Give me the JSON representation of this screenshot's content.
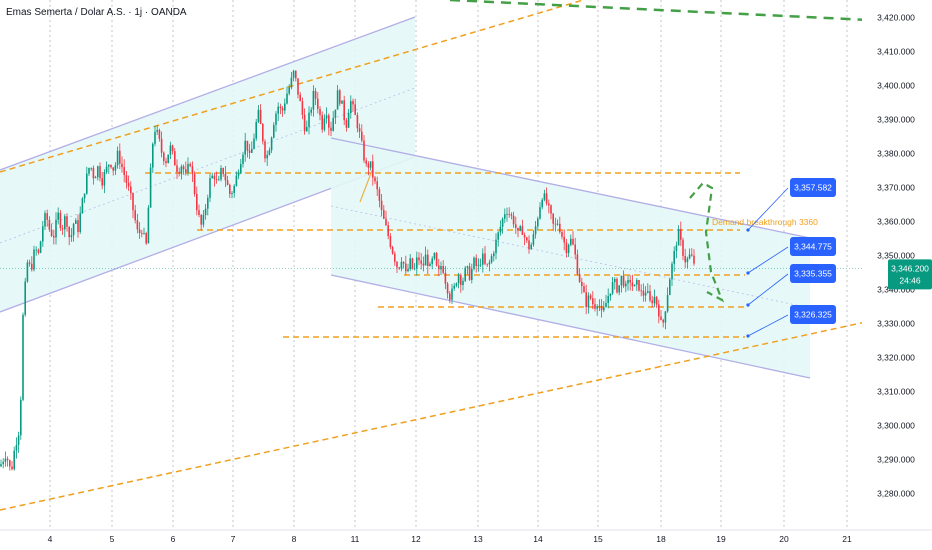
{
  "header": {
    "symbol": "Emas Semerta / Dolar A.S. · 1j · OANDA"
  },
  "colors": {
    "up": "#089981",
    "down": "#f23645",
    "orange": "#f0a01e",
    "green_dash": "#43a047",
    "channel_line": "#b2aee6",
    "channel_fill": "#e3f7f6",
    "label_blue": "#2962ff",
    "price_tag": "#089981",
    "grid": "#9598a1"
  },
  "chart_data": {
    "type": "candlestick",
    "ylim": [
      3275,
      3425
    ],
    "y_ticks": [
      3280,
      3290,
      3300,
      3310,
      3320,
      3330,
      3340,
      3350,
      3360,
      3370,
      3380,
      3390,
      3400,
      3410,
      3420
    ],
    "y_tick_labels": [
      "3,280.000",
      "3,290.000",
      "3,300.000",
      "3,310.000",
      "3,320.000",
      "3,330.000",
      "3,340.000",
      "3,350.000",
      "3,360.000",
      "3,370.000",
      "3,380.000",
      "3,390.000",
      "3,400.000",
      "3,410.000",
      "3,420.000"
    ],
    "x_ticks": [
      "4",
      "5",
      "6",
      "7",
      "8",
      "11",
      "12",
      "13",
      "14",
      "15",
      "18",
      "19",
      "20",
      "21"
    ],
    "current_price": "3,346.200",
    "countdown": "24:46",
    "annotation": "Demand breakthrough 3360",
    "level_labels": [
      "3,357.582",
      "3,344.775",
      "3,335.355",
      "3,326.325"
    ],
    "close_path": [
      [
        0,
        3288
      ],
      [
        6,
        3292
      ],
      [
        11,
        3286
      ],
      [
        15,
        3294
      ],
      [
        20,
        3300
      ],
      [
        23,
        3332
      ],
      [
        27,
        3348
      ],
      [
        31,
        3346
      ],
      [
        35,
        3352
      ],
      [
        39,
        3350
      ],
      [
        42,
        3358
      ],
      [
        46,
        3362
      ],
      [
        50,
        3357
      ],
      [
        54,
        3356
      ],
      [
        58,
        3362
      ],
      [
        62,
        3358
      ],
      [
        66,
        3362
      ],
      [
        70,
        3354
      ],
      [
        74,
        3360
      ],
      [
        78,
        3358
      ],
      [
        82,
        3365
      ],
      [
        86,
        3372
      ],
      [
        90,
        3377
      ],
      [
        94,
        3373
      ],
      [
        98,
        3376
      ],
      [
        102,
        3372
      ],
      [
        106,
        3375
      ],
      [
        110,
        3378
      ],
      [
        114,
        3375
      ],
      [
        118,
        3380
      ],
      [
        122,
        3376
      ],
      [
        126,
        3372
      ],
      [
        130,
        3368
      ],
      [
        134,
        3362
      ],
      [
        138,
        3356
      ],
      [
        142,
        3358
      ],
      [
        146,
        3352
      ],
      [
        150,
        3372
      ],
      [
        154,
        3388
      ],
      [
        158,
        3385
      ],
      [
        162,
        3380
      ],
      [
        166,
        3378
      ],
      [
        170,
        3382
      ],
      [
        174,
        3378
      ],
      [
        178,
        3375
      ],
      [
        182,
        3377
      ],
      [
        186,
        3373
      ],
      [
        190,
        3378
      ],
      [
        194,
        3370
      ],
      [
        198,
        3362
      ],
      [
        202,
        3358
      ],
      [
        206,
        3365
      ],
      [
        210,
        3372
      ],
      [
        214,
        3374
      ],
      [
        218,
        3370
      ],
      [
        222,
        3376
      ],
      [
        226,
        3372
      ],
      [
        230,
        3368
      ],
      [
        234,
        3370
      ],
      [
        238,
        3375
      ],
      [
        242,
        3380
      ],
      [
        246,
        3384
      ],
      [
        250,
        3378
      ],
      [
        254,
        3385
      ],
      [
        258,
        3392
      ],
      [
        262,
        3386
      ],
      [
        266,
        3378
      ],
      [
        270,
        3383
      ],
      [
        274,
        3390
      ],
      [
        278,
        3394
      ],
      [
        282,
        3392
      ],
      [
        286,
        3397
      ],
      [
        290,
        3400
      ],
      [
        294,
        3404
      ],
      [
        298,
        3398
      ],
      [
        302,
        3392
      ],
      [
        306,
        3386
      ],
      [
        310,
        3392
      ],
      [
        314,
        3398
      ],
      [
        318,
        3394
      ],
      [
        322,
        3388
      ],
      [
        326,
        3394
      ],
      [
        330,
        3386
      ],
      [
        334,
        3392
      ],
      [
        338,
        3398
      ],
      [
        342,
        3394
      ],
      [
        346,
        3388
      ],
      [
        350,
        3396
      ],
      [
        354,
        3392
      ],
      [
        358,
        3388
      ],
      [
        362,
        3382
      ],
      [
        366,
        3376
      ],
      [
        370,
        3377
      ],
      [
        374,
        3372
      ],
      [
        378,
        3368
      ],
      [
        382,
        3362
      ],
      [
        386,
        3358
      ],
      [
        390,
        3354
      ],
      [
        394,
        3350
      ],
      [
        398,
        3346
      ],
      [
        402,
        3350
      ],
      [
        406,
        3344
      ],
      [
        410,
        3348
      ],
      [
        414,
        3345
      ],
      [
        418,
        3350
      ],
      [
        422,
        3346
      ],
      [
        426,
        3350
      ],
      [
        430,
        3346
      ],
      [
        434,
        3350
      ],
      [
        438,
        3344
      ],
      [
        442,
        3348
      ],
      [
        446,
        3342
      ],
      [
        450,
        3338
      ],
      [
        454,
        3340
      ],
      [
        458,
        3345
      ],
      [
        462,
        3342
      ],
      [
        466,
        3346
      ],
      [
        470,
        3344
      ],
      [
        474,
        3348
      ],
      [
        478,
        3346
      ],
      [
        482,
        3350
      ],
      [
        486,
        3346
      ],
      [
        490,
        3348
      ],
      [
        494,
        3352
      ],
      [
        498,
        3356
      ],
      [
        502,
        3360
      ],
      [
        506,
        3364
      ],
      [
        510,
        3362
      ],
      [
        514,
        3360
      ],
      [
        518,
        3356
      ],
      [
        522,
        3358
      ],
      [
        526,
        3354
      ],
      [
        530,
        3352
      ],
      [
        534,
        3356
      ],
      [
        538,
        3362
      ],
      [
        542,
        3368
      ],
      [
        546,
        3366
      ],
      [
        550,
        3362
      ],
      [
        554,
        3358
      ],
      [
        558,
        3360
      ],
      [
        562,
        3356
      ],
      [
        566,
        3352
      ],
      [
        570,
        3355
      ],
      [
        574,
        3352
      ],
      [
        578,
        3345
      ],
      [
        582,
        3340
      ],
      [
        586,
        3336
      ],
      [
        590,
        3338
      ],
      [
        594,
        3335
      ],
      [
        598,
        3337
      ],
      [
        602,
        3332
      ],
      [
        606,
        3336
      ],
      [
        610,
        3340
      ],
      [
        614,
        3342
      ],
      [
        618,
        3340
      ],
      [
        622,
        3344
      ],
      [
        626,
        3340
      ],
      [
        630,
        3343
      ],
      [
        634,
        3340
      ],
      [
        638,
        3342
      ],
      [
        642,
        3338
      ],
      [
        646,
        3340
      ],
      [
        650,
        3336
      ],
      [
        654,
        3338
      ],
      [
        658,
        3335
      ],
      [
        662,
        3328
      ],
      [
        666,
        3336
      ],
      [
        670,
        3344
      ],
      [
        674,
        3350
      ],
      [
        678,
        3357
      ],
      [
        682,
        3352
      ],
      [
        686,
        3348
      ],
      [
        690,
        3350
      ],
      [
        694,
        3348
      ],
      [
        698,
        3346
      ]
    ]
  }
}
